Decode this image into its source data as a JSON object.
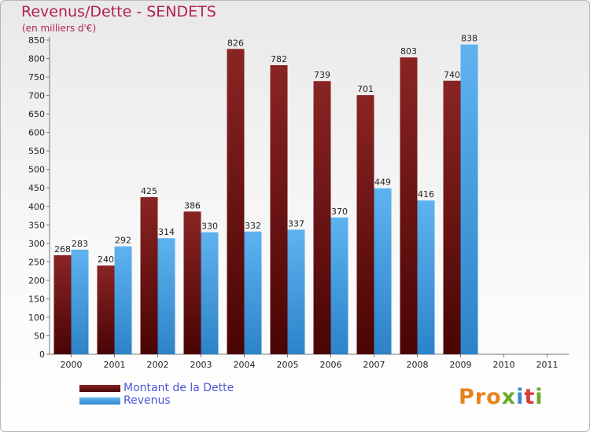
{
  "title": "Revenus/Dette - SENDETS",
  "subtitle": "(en milliers d'€)",
  "logo": "Proxiti",
  "colors": {
    "title": "#b41e55",
    "debt": "#6e1010",
    "revenue": "#4aa3e6",
    "legend_text": "#4a56d8"
  },
  "chart_data": {
    "type": "bar",
    "categories": [
      "2000",
      "2001",
      "2002",
      "2003",
      "2004",
      "2005",
      "2006",
      "2007",
      "2008",
      "2009",
      "2010",
      "2011"
    ],
    "series": [
      {
        "name": "Montant de la Dette",
        "values": [
          268,
          240,
          425,
          386,
          826,
          782,
          739,
          701,
          803,
          740,
          null,
          null
        ]
      },
      {
        "name": "Revenus",
        "values": [
          283,
          292,
          314,
          330,
          332,
          337,
          370,
          449,
          416,
          838,
          null,
          null
        ]
      }
    ],
    "ylim": [
      0,
      850
    ],
    "yticks": [
      0,
      50,
      100,
      150,
      200,
      250,
      300,
      350,
      400,
      450,
      500,
      550,
      600,
      650,
      700,
      750,
      800,
      850
    ],
    "grid": false,
    "legend": "bottom-left"
  }
}
